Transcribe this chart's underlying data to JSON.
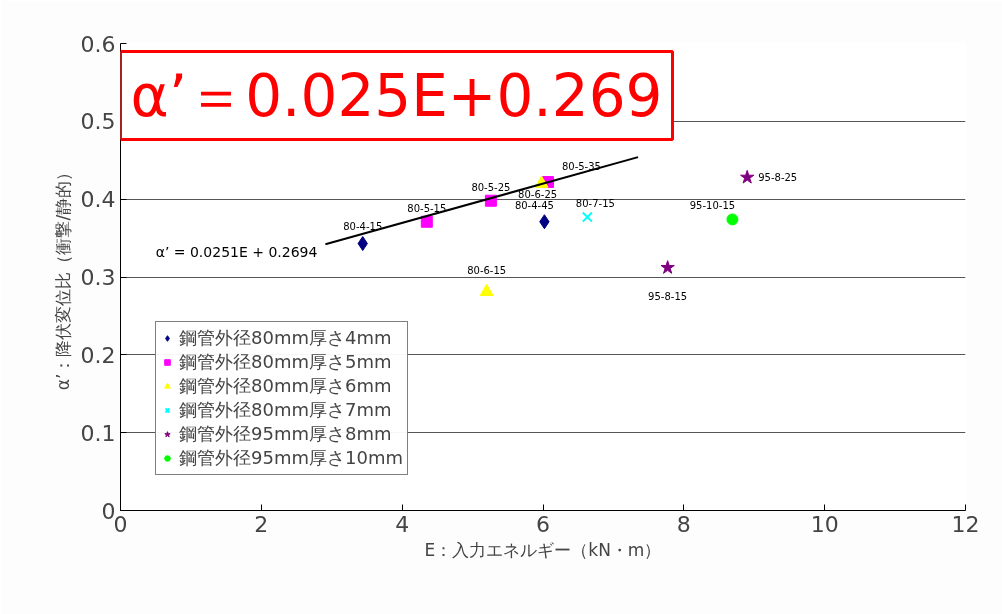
{
  "chart_data": {
    "type": "scatter",
    "xlabel": "E：入力エネルギー（kN・m）",
    "ylabel": "α’：降伏変位比（衝撃/静的）",
    "xlim": [
      0,
      12
    ],
    "xticks": [
      0,
      2,
      4,
      6,
      8,
      10,
      12
    ],
    "ylim": [
      0,
      0.6
    ],
    "yticks": [
      0,
      0.1,
      0.2,
      0.3,
      0.4,
      0.5,
      0.6
    ],
    "grid": "y",
    "legend": "bottom left",
    "series": [
      {
        "name": "鋼管外径80mm厚さ4mm",
        "color": "#000080",
        "marker": "diamond",
        "x": [
          3.44,
          6.02
        ],
        "values": [
          0.343,
          0.371
        ]
      },
      {
        "name": "鋼管外径80mm厚さ5mm",
        "color": "#ff00ff",
        "marker": "square",
        "x": [
          4.35,
          5.26,
          6.07
        ],
        "values": [
          0.371,
          0.398,
          0.422
        ]
      },
      {
        "name": "鋼管外径80mm厚さ6mm",
        "color": "#ffff00",
        "marker": "triangle",
        "x": [
          5.2,
          5.98
        ],
        "values": [
          0.281,
          0.42
        ]
      },
      {
        "name": "鋼管外径80mm厚さ7mm",
        "color": "#00ffff",
        "marker": "cross",
        "x": [
          6.63
        ],
        "values": [
          0.377
        ]
      },
      {
        "name": "鋼管外径95mm厚さ8mm",
        "color": "#800080",
        "marker": "star",
        "x": [
          7.77,
          8.9
        ],
        "values": [
          0.312,
          0.428
        ]
      },
      {
        "name": "鋼管外径95mm厚さ10mm",
        "color": "#00ff00",
        "marker": "circle",
        "x": [
          8.69
        ],
        "values": [
          0.374
        ]
      },
      {
        "type": "line",
        "color": "#000000",
        "x": [
          2.91,
          7.35
        ],
        "values": [
          0.342,
          0.454
        ]
      }
    ],
    "annotations": [
      {
        "text": "80-4-15",
        "x": 3.44,
        "y": 0.343
      },
      {
        "text": "80-4-45",
        "x": 6.02,
        "y": 0.371
      },
      {
        "text": "80-5-15",
        "x": 4.35,
        "y": 0.371
      },
      {
        "text": "80-5-25",
        "x": 5.26,
        "y": 0.398
      },
      {
        "text": "80-5-35",
        "x": 6.07,
        "y": 0.422
      },
      {
        "text": "80-6-15",
        "x": 5.2,
        "y": 0.281
      },
      {
        "text": "80-6-25",
        "x": 5.98,
        "y": 0.42
      },
      {
        "text": "80-7-15",
        "x": 6.63,
        "y": 0.377
      },
      {
        "text": "95-8-15",
        "x": 7.77,
        "y": 0.312
      },
      {
        "text": "95-8-25",
        "x": 8.9,
        "y": 0.428
      },
      {
        "text": "95-10-15",
        "x": 8.69,
        "y": 0.374
      },
      {
        "text": "α’ = 0.0251E + 0.2694",
        "x": 2.91,
        "y": 0.342
      },
      "α’＝0.025E+0.269"
    ]
  }
}
